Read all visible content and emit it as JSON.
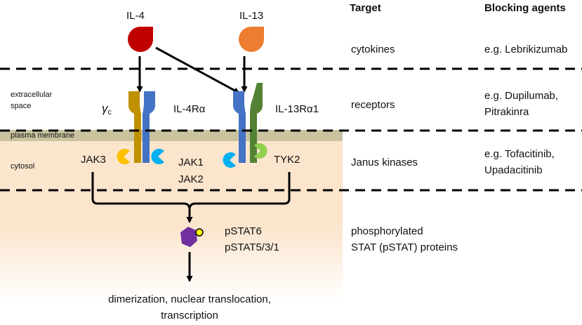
{
  "headers": {
    "target": "Target",
    "blocking": "Blocking agents"
  },
  "regions": {
    "extracellular": [
      "extracellular",
      "space"
    ],
    "plasma_membrane": "plasma membrane",
    "cytosol": "cytosol"
  },
  "cytokines": {
    "il4": "IL-4",
    "il13": "IL-13"
  },
  "receptors": {
    "gamma": "γ",
    "gamma_sub": "c",
    "il4ra": "IL-4Rα",
    "il13ra1": "IL-13Rα1"
  },
  "kinases": {
    "jak3": "JAK3",
    "jak1": "JAK1",
    "jak2": "JAK2",
    "tyk2": "TYK2"
  },
  "stat": {
    "line1": "pSTAT6",
    "line2": "pSTAT5/3/1"
  },
  "outcome": {
    "line1": "dimerization, nuclear translocation,",
    "line2": "transcription"
  },
  "targets": [
    {
      "target": [
        "cytokines"
      ],
      "agents": [
        "e.g. Lebrikizumab"
      ]
    },
    {
      "target": [
        "receptors"
      ],
      "agents": [
        "e.g. Dupilumab,",
        "Pitrakinra"
      ]
    },
    {
      "target": [
        "Janus kinases"
      ],
      "agents": [
        "e.g. Tofacitinib,",
        "Upadacitinib"
      ]
    },
    {
      "target": [
        "phosphorylated",
        "STAT (pSTAT) proteins"
      ],
      "agents": []
    }
  ],
  "colors": {
    "il4": "#c00000",
    "il13": "#ed7d31",
    "gamma_c": "#bf9000",
    "il4ra": "#4472c4",
    "il13ra1_blue": "#4472c4",
    "il13ra1_green": "#548235",
    "jak3": "#ffc000",
    "jak_blue": "#00b0f0",
    "tyk2": "#92d050",
    "membrane": "#c9c3a0",
    "cytosol": "#fbe5cd",
    "stat": "#7030a0",
    "phospho": "#ffff00"
  }
}
